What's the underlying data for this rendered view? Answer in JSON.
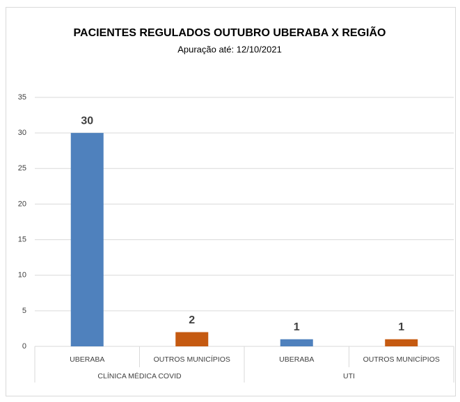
{
  "chart_data": {
    "type": "bar",
    "title": "PACIENTES REGULADOS OUTUBRO UBERABA X REGIÃO",
    "subtitle": "Apuração até: 12/10/2021",
    "groups": [
      {
        "name": "CLÍNICA MÉDICA COVID",
        "categories": [
          "UBERABA",
          "OUTROS MUNICÍPIOS"
        ],
        "values": [
          30,
          2
        ],
        "colors": [
          "#4f81bd",
          "#c55a11"
        ]
      },
      {
        "name": "UTI",
        "categories": [
          "UBERABA",
          "OUTROS MUNICÍPIOS"
        ],
        "values": [
          1,
          1
        ],
        "colors": [
          "#4f81bd",
          "#c55a11"
        ]
      }
    ],
    "ylim": [
      0,
      35
    ],
    "yticks": [
      0,
      5,
      10,
      15,
      20,
      25,
      30,
      35
    ],
    "grid": true
  }
}
